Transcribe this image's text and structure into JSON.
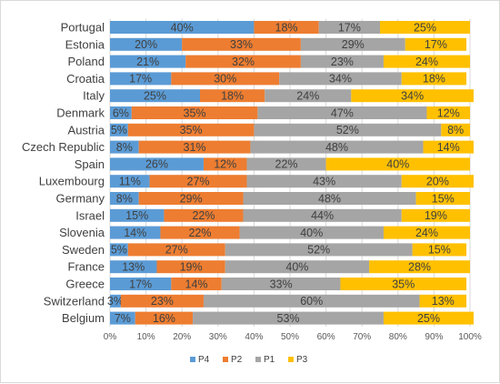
{
  "chart_data": {
    "type": "bar",
    "orientation": "horizontal",
    "stacked": "percent",
    "categories": [
      "Portugal",
      "Estonia",
      "Poland",
      "Croatia",
      "Italy",
      "Denmark",
      "Austria",
      "Czech Republic",
      "Spain",
      "Luxembourg",
      "Germany",
      "Israel",
      "Slovenia",
      "Sweden",
      "France",
      "Greece",
      "Switzerland",
      "Belgium"
    ],
    "series": [
      {
        "name": "P4",
        "color": "#5B9BD5",
        "values": [
          40,
          20,
          21,
          17,
          25,
          6,
          5,
          8,
          26,
          11,
          8,
          15,
          14,
          5,
          13,
          17,
          3,
          7
        ]
      },
      {
        "name": "P2",
        "color": "#ED7D31",
        "values": [
          18,
          33,
          32,
          30,
          18,
          35,
          35,
          31,
          12,
          27,
          29,
          22,
          22,
          27,
          19,
          14,
          23,
          16
        ]
      },
      {
        "name": "P1",
        "color": "#A5A5A5",
        "values": [
          17,
          29,
          23,
          34,
          24,
          47,
          52,
          48,
          22,
          43,
          48,
          44,
          40,
          52,
          40,
          33,
          60,
          53
        ]
      },
      {
        "name": "P3",
        "color": "#FFC000",
        "values": [
          25,
          17,
          24,
          18,
          34,
          12,
          8,
          14,
          40,
          20,
          15,
          19,
          24,
          15,
          28,
          35,
          13,
          25
        ]
      }
    ],
    "xlim": [
      0,
      100
    ],
    "xticks": [
      "0%",
      "10%",
      "20%",
      "30%",
      "40%",
      "50%",
      "60%",
      "70%",
      "80%",
      "90%",
      "100%"
    ],
    "value_suffix": "%",
    "grid": "vertical",
    "legend": "bottom",
    "title": "",
    "xlabel": "",
    "ylabel": ""
  }
}
